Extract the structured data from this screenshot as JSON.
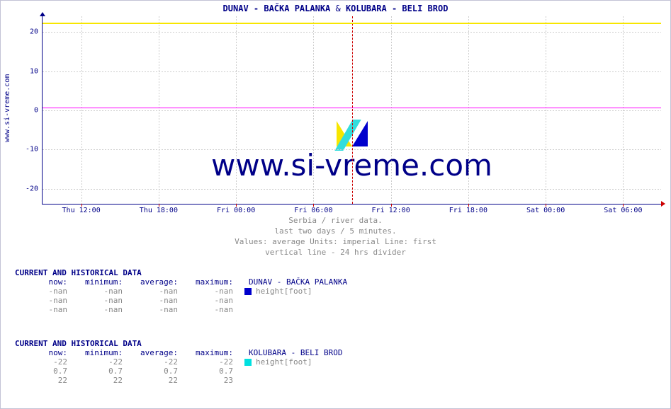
{
  "side_url": "www.si-vreme.com",
  "title_left": "DUNAV -  BAČKA PALANKA",
  "title_amp": " & ",
  "title_right": " KOLUBARA -  BELI BROD",
  "chart": {
    "type": "line",
    "ylim": [
      -24,
      24
    ],
    "yticks": [
      -20,
      -10,
      0,
      10,
      20
    ],
    "xticks": [
      "Thu 12:00",
      "Thu 18:00",
      "Fri 00:00",
      "Fri 06:00",
      "Fri 12:00",
      "Fri 18:00",
      "Sat 00:00",
      "Sat 06:00"
    ],
    "xlim_hours": 48,
    "x_first_tick_offset_hours": 3,
    "x_tick_step_hours": 6,
    "divider_offset_hours": 24,
    "grid_color": "#cccccc",
    "axis_color": "#000088",
    "line_yellow_y": 22.2,
    "line_yellow_color": "#f7e600",
    "line_magenta_y": 0.7,
    "line_magenta_color": "#ff00ff",
    "background_color": "#ffffff"
  },
  "watermark_text": "www.si-vreme.com",
  "caption_l1": "Serbia / river data.",
  "caption_l2": "last two days / 5 minutes.",
  "caption_l3": "Values: average  Units: imperial  Line: first",
  "caption_l4": "vertical line - 24 hrs  divider",
  "block1": {
    "header": "CURRENT AND HISTORICAL DATA",
    "cols": [
      "now:",
      "minimum:",
      "average:",
      "maximum:"
    ],
    "station": "DUNAV -  BAČKA PALANKA",
    "legend_label": "height[foot]",
    "legend_color": "#0000cc",
    "rows": [
      [
        "-nan",
        "-nan",
        "-nan",
        "-nan"
      ],
      [
        "-nan",
        "-nan",
        "-nan",
        "-nan"
      ],
      [
        "-nan",
        "-nan",
        "-nan",
        "-nan"
      ]
    ]
  },
  "block2": {
    "header": "CURRENT AND HISTORICAL DATA",
    "cols": [
      "now:",
      "minimum:",
      "average:",
      "maximum:"
    ],
    "station": "KOLUBARA -  BELI BROD",
    "legend_label": "height[foot]",
    "legend_color": "#00e0e0",
    "rows": [
      [
        "-22",
        "-22",
        "-22",
        "-22"
      ],
      [
        "0.7",
        "0.7",
        "0.7",
        "0.7"
      ],
      [
        "22",
        "22",
        "22",
        "23"
      ]
    ]
  }
}
